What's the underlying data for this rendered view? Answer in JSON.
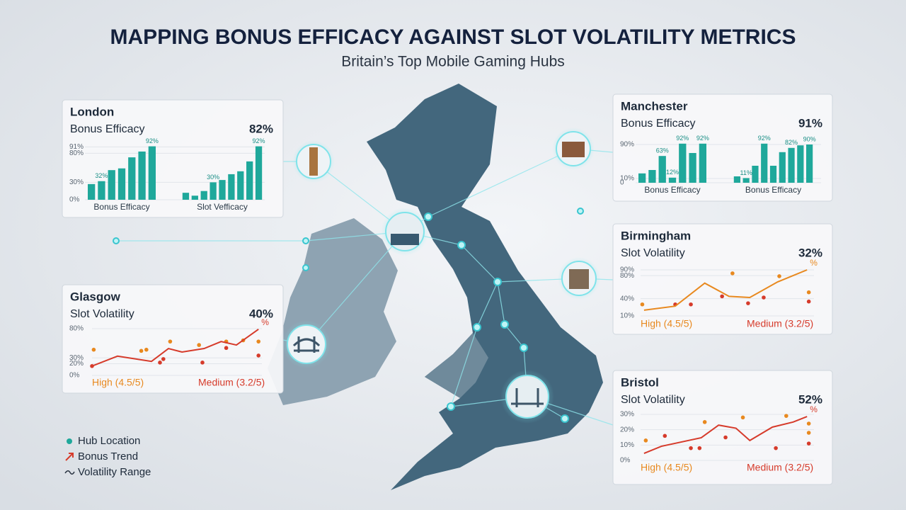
{
  "header": {
    "title": "MAPPING BONUS EFFICACY AGAINST SLOT VOLATILITY METRICS",
    "subtitle": "Britain’s Top Mobile Gaming Hubs"
  },
  "legend": {
    "items": [
      "Hub Location",
      "Bonus Trend",
      "Volatility Range"
    ]
  },
  "chart_data": [
    {
      "type": "bar",
      "title": "London",
      "subtitle": "Bonus Efficacy",
      "headline": "82%",
      "ylim": [
        0,
        100
      ],
      "yticks": [
        {
          "value": 0,
          "label": "0%"
        },
        {
          "value": 30,
          "label": "30%"
        },
        {
          "value": 80,
          "label": "80%"
        },
        {
          "value": 91,
          "label": "91%"
        }
      ],
      "groups": [
        {
          "name": "Bonus Efficacy",
          "color": "#1fa89b",
          "values": [
            27,
            32,
            51,
            54,
            73,
            83,
            92
          ],
          "value_labels": [
            null,
            "32%",
            null,
            null,
            null,
            null,
            "92%"
          ]
        },
        {
          "name": "Slot Vefficacy",
          "color": "#1fa89b",
          "values": [
            12,
            7,
            15,
            30,
            34,
            44,
            49,
            66,
            92
          ],
          "value_labels": [
            null,
            null,
            null,
            "30%",
            null,
            null,
            null,
            null,
            "92%"
          ]
        }
      ]
    },
    {
      "type": "bar",
      "title": "Manchester",
      "subtitle": "Bonus Efficacy",
      "headline": "91%",
      "ylim": [
        0,
        100
      ],
      "yticks": [
        0,
        {
          "value": 10,
          "label": "10%"
        },
        {
          "value": 90,
          "label": "90%"
        }
      ],
      "groups": [
        {
          "name": "Bonus Efficacy",
          "color": "#1fa89b",
          "values": [
            22,
            30,
            63,
            12,
            92,
            70,
            92
          ],
          "value_labels": [
            null,
            null,
            "63%",
            "12%",
            "92%",
            null,
            "92%"
          ]
        },
        {
          "name": "Bonus Efficacy",
          "color": "#1fa89b",
          "values": [
            15,
            11,
            40,
            92,
            40,
            72,
            82,
            88,
            90
          ],
          "value_labels": [
            null,
            "11%",
            null,
            "92%",
            null,
            null,
            "82%",
            null,
            "90%"
          ]
        }
      ]
    },
    {
      "type": "line",
      "title": "Birmingham",
      "subtitle": "Slot Volatility",
      "headline": "32%",
      "end_label": "%",
      "xlim": [
        0,
        10
      ],
      "ylim": [
        10,
        90
      ],
      "yticks": [
        {
          "value": 10,
          "label": "10%"
        },
        {
          "value": 40,
          "label": "40%"
        },
        {
          "value": 80,
          "label": "80%"
        },
        {
          "value": 90,
          "label": "90%"
        }
      ],
      "series": [
        {
          "name": "High (4.5/5)",
          "color": "#e8891f",
          "style": "dots",
          "x": [
            0.1,
            5.3,
            8,
            9.7
          ],
          "values": [
            30,
            84,
            79,
            51
          ]
        },
        {
          "name": "Medium (3.2/5)",
          "color": "#d63b2b",
          "style": "dots",
          "x": [
            2,
            2.9,
            4.7,
            6.2,
            7.1,
            9.7
          ],
          "values": [
            30,
            30,
            44,
            32,
            42,
            35
          ]
        },
        {
          "color": "#e8891f",
          "style": "line",
          "x": [
            0.2,
            2,
            3.7,
            5.1,
            6.3,
            7.9,
            9.6
          ],
          "values": [
            20,
            27,
            67,
            44,
            42,
            69,
            90
          ]
        }
      ]
    },
    {
      "type": "line",
      "title": "Glasgow",
      "subtitle": "Slot Volatility",
      "headline": "40%",
      "end_label": "%",
      "xlim": [
        0,
        10
      ],
      "ylim": [
        0,
        80
      ],
      "yticks": [
        {
          "value": 0,
          "label": "0%"
        },
        {
          "value": 20,
          "label": "20%"
        },
        {
          "value": 30,
          "label": "30%"
        },
        {
          "value": 80,
          "label": "80%"
        }
      ],
      "series": [
        {
          "name": "High (4.5/5)",
          "color": "#e8891f",
          "style": "dots",
          "x": [
            0.1,
            2.9,
            3.2,
            4.6,
            6.3,
            7.9,
            8.9,
            9.8
          ],
          "values": [
            44,
            42,
            44,
            58,
            52,
            58,
            60,
            58
          ]
        },
        {
          "name": "Medium (3.2/5)",
          "color": "#d63b2b",
          "style": "dots",
          "x": [
            0,
            4,
            4.2,
            6.5,
            7.9,
            9.8
          ],
          "values": [
            16,
            22,
            28,
            22,
            47,
            34
          ]
        },
        {
          "color": "#d63b2b",
          "style": "line",
          "x": [
            0,
            1.5,
            3.5,
            4.5,
            5.3,
            6.6,
            7.6,
            8.5,
            9.8
          ],
          "values": [
            16,
            33,
            24,
            46,
            40,
            46,
            58,
            52,
            79
          ]
        }
      ]
    },
    {
      "type": "line",
      "title": "Bristol",
      "subtitle": "Slot Volatility",
      "headline": "52%",
      "end_label": "%",
      "xlim": [
        0,
        10
      ],
      "ylim": [
        0,
        30
      ],
      "yticks": [
        {
          "value": 0,
          "label": "0%"
        },
        {
          "value": 10,
          "label": "10%"
        },
        {
          "value": 20,
          "label": "20%"
        },
        {
          "value": 30,
          "label": "30%"
        }
      ],
      "series": [
        {
          "name": "High (4.5/5)",
          "color": "#e8891f",
          "style": "dots",
          "x": [
            0.3,
            3.7,
            5.9,
            8.4,
            9.7,
            9.7
          ],
          "values": [
            13,
            25,
            28,
            29,
            24,
            18
          ]
        },
        {
          "name": "Medium (3.2/5)",
          "color": "#d63b2b",
          "style": "dots",
          "x": [
            1.4,
            2.9,
            3.4,
            4.9,
            7.8,
            9.7
          ],
          "values": [
            16,
            8,
            8,
            15,
            8,
            11
          ]
        },
        {
          "color": "#d63b2b",
          "style": "line",
          "x": [
            0.2,
            1.2,
            3.5,
            4.5,
            5.5,
            6.3,
            7.6,
            8.8,
            9.6
          ],
          "values": [
            4.6,
            9.2,
            14.8,
            23,
            21,
            13,
            21.7,
            25,
            28.6
          ]
        }
      ]
    }
  ]
}
